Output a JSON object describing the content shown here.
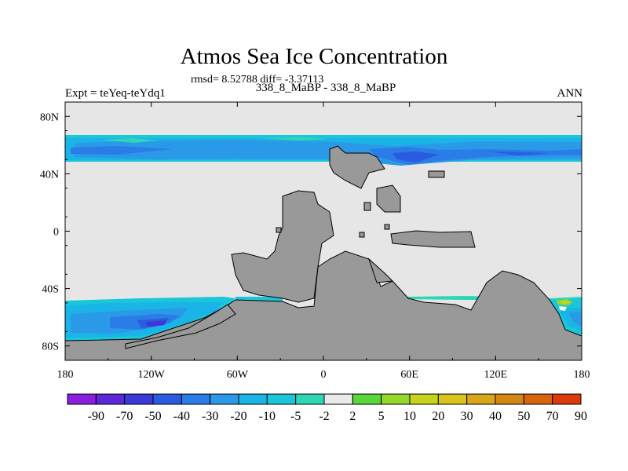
{
  "title": "Atmos Sea Ice Concentration",
  "stats_line": "rmsd= 8.52788 diff= -3.37113",
  "subtitle": "338_8_MaBP - 338_8_MaBP",
  "experiment": "Expt = teYeq-teYdq1",
  "season": "ANN",
  "colors": {
    "ocean_no_change": "#e6e6e6",
    "land": "#999999"
  },
  "chart_data": {
    "type": "heatmap",
    "x": {
      "range": [
        -180,
        180
      ],
      "tick_values": [
        -180,
        -120,
        -60,
        0,
        60,
        120,
        180
      ],
      "tick_labels": [
        "180",
        "120W",
        "60W",
        "0",
        "60E",
        "120E",
        "180"
      ]
    },
    "y": {
      "range": [
        -90,
        90
      ],
      "tick_values": [
        80,
        40,
        0,
        -40,
        -80
      ],
      "tick_labels": [
        "80N",
        "40N",
        "0",
        "40S",
        "80S"
      ]
    },
    "colorbar": {
      "labels": [
        "-90",
        "-70",
        "-50",
        "-40",
        "-30",
        "-20",
        "-10",
        "-5",
        "-2",
        "2",
        "5",
        "10",
        "20",
        "30",
        "40",
        "50",
        "70",
        "90"
      ],
      "colors": [
        "#8a1fe0",
        "#5a28d8",
        "#3a3ad8",
        "#2a5ce2",
        "#2a7ce6",
        "#2a9ae8",
        "#1ab4e6",
        "#19c6da",
        "#2fd6b6",
        "#eaeaea",
        "#58d63a",
        "#96d82a",
        "#c6d41e",
        "#d8c41a",
        "#d8a616",
        "#d48612",
        "#d8640e",
        "#dc3a0a"
      ]
    },
    "regions": [
      {
        "name": "northern ice band",
        "lat_range": [
          47,
          68
        ],
        "lon_range": [
          -180,
          180
        ],
        "approx_change": [
          -50,
          -5
        ]
      },
      {
        "name": "southern ice band west",
        "lat_range": [
          -78,
          -48
        ],
        "lon_range": [
          -180,
          -50
        ],
        "approx_change": [
          -70,
          -5
        ]
      },
      {
        "name": "southern ice band east",
        "lat_range": [
          -72,
          -48
        ],
        "lon_range": [
          140,
          180
        ],
        "approx_change": [
          -30,
          10
        ]
      }
    ]
  }
}
